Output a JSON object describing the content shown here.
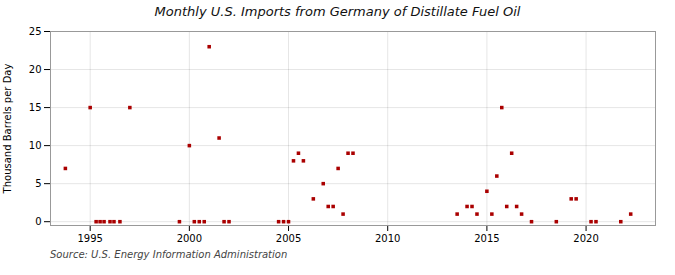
{
  "chart_data": {
    "type": "scatter",
    "title": "Monthly U.S. Imports from Germany of Distillate Fuel Oil",
    "ylabel": "Thousand Barrels per Day",
    "annotations": [
      "Source: U.S. Energy Information Administration"
    ],
    "color": "#aa0000",
    "marker": "square",
    "grid": true,
    "xlim": [
      1993.0,
      2023.5
    ],
    "ylim": [
      -0.5,
      25
    ],
    "xticks": [
      1995,
      2000,
      2005,
      2010,
      2015,
      2020
    ],
    "yticks": [
      0,
      5,
      10,
      15,
      20,
      25
    ],
    "x": [
      1993.75,
      1995.0,
      1997.0,
      1995.3,
      1995.5,
      1995.7,
      1996.0,
      1996.2,
      1996.5,
      2000.0,
      2001.0,
      2001.5,
      1999.5,
      2000.25,
      2000.5,
      2000.75,
      2001.75,
      2002.0,
      2004.5,
      2004.75,
      2005.0,
      2005.25,
      2005.5,
      2005.75,
      2006.25,
      2006.75,
      2007.0,
      2007.25,
      2007.5,
      2007.75,
      2008.0,
      2008.25,
      2013.5,
      2014.0,
      2014.25,
      2014.5,
      2015.0,
      2015.25,
      2015.5,
      2015.75,
      2016.0,
      2016.25,
      2016.5,
      2016.75,
      2017.25,
      2018.5,
      2019.25,
      2019.5,
      2020.25,
      2020.5,
      2021.75,
      2022.25
    ],
    "values": [
      7,
      15,
      15,
      0,
      0,
      0,
      0,
      0,
      0,
      10,
      23,
      11,
      0,
      0,
      0,
      0,
      0,
      0,
      0,
      0,
      0,
      8,
      9,
      8,
      3,
      5,
      2,
      2,
      7,
      1,
      9,
      9,
      1,
      2,
      2,
      1,
      4,
      1,
      6,
      15,
      2,
      9,
      2,
      1,
      0,
      0,
      3,
      3,
      0,
      0,
      0,
      1
    ]
  }
}
